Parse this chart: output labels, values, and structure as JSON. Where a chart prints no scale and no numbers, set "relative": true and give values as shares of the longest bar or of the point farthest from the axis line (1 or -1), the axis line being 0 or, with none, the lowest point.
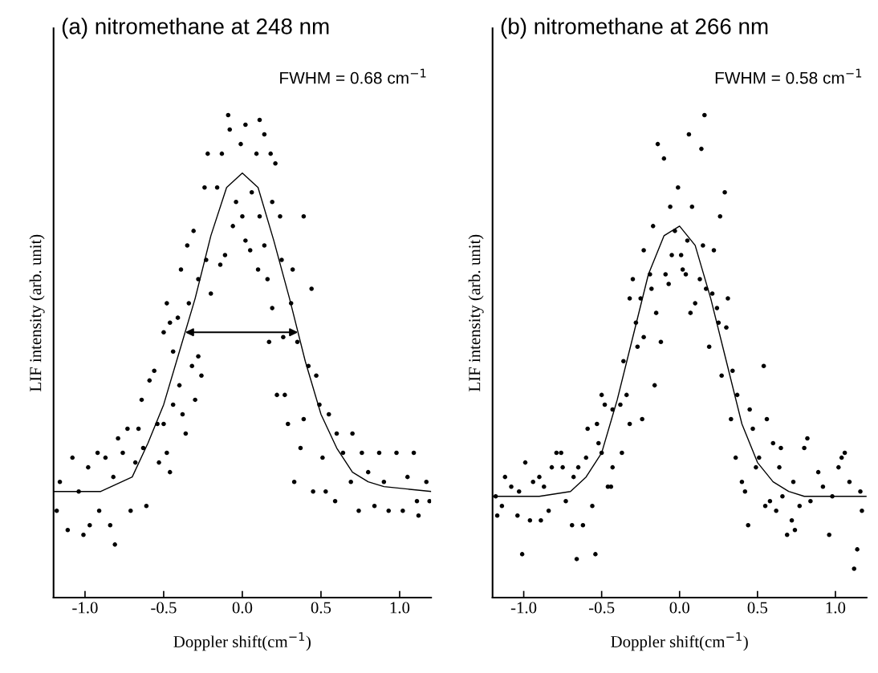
{
  "chart_data": [
    {
      "type": "scatter",
      "title": "(a) nitromethane at 248 nm",
      "xlabel": "Doppler shift(cm$^{−1}$)",
      "ylabel": "LIF intensity (arb. unit)",
      "relative": true,
      "xlim": [
        -1.2,
        1.2
      ],
      "xticks": [
        {
          "value": -1.0,
          "label": "-1.0"
        },
        {
          "value": -0.5,
          "label": "-0.5"
        },
        {
          "value": 0.0,
          "label": "0.0"
        },
        {
          "value": 0.5,
          "label": "0.5"
        },
        {
          "value": 1.0,
          "label": "1.0"
        }
      ],
      "tick_labels": "x",
      "grid": false,
      "annotations": [
        "FWHM = 0.68 cm$^{−1}$"
      ],
      "series": [
        {
          "marker": "circle",
          "color": "#000000",
          "x": [
            -1.16,
            -1.18,
            -1.11,
            -1.08,
            -1.01,
            -1.04,
            -0.97,
            -0.98,
            -0.92,
            -0.91,
            -0.87,
            -0.84,
            -0.81,
            -0.82,
            -0.79,
            -0.76,
            -0.73,
            -0.71,
            -0.68,
            -0.66,
            -0.64,
            -0.63,
            -0.61,
            -0.59,
            -0.56,
            -0.54,
            -0.53,
            -0.5,
            -0.48,
            -0.48,
            -0.46,
            -0.46,
            -0.5,
            -0.44,
            -0.44,
            -0.41,
            -0.4,
            -0.39,
            -0.38,
            -0.36,
            -0.35,
            -0.34,
            -0.32,
            -0.31,
            -0.3,
            -0.28,
            -0.28,
            -0.26,
            -0.24,
            -0.23,
            -0.22,
            -0.2,
            -0.16,
            -0.14,
            -0.13,
            -0.11,
            -0.09,
            -0.08,
            -0.06,
            -0.04,
            -0.01,
            0.0,
            0.02,
            0.02,
            0.05,
            0.06,
            0.09,
            0.11,
            0.1,
            0.11,
            0.14,
            0.14,
            0.16,
            0.17,
            0.18,
            0.19,
            0.19,
            0.21,
            0.22,
            0.24,
            0.25,
            0.26,
            0.27,
            0.29,
            0.31,
            0.32,
            0.33,
            0.35,
            0.37,
            0.39,
            0.39,
            0.42,
            0.44,
            0.45,
            0.47,
            0.49,
            0.51,
            0.53,
            0.55,
            0.59,
            0.6,
            0.64,
            0.69,
            0.7,
            0.74,
            0.76,
            0.8,
            0.84,
            0.87,
            0.9,
            0.93,
            0.98,
            1.02,
            1.05,
            1.09,
            1.11,
            1.12,
            1.17,
            1.19
          ],
          "values": [
            0.24,
            0.18,
            0.14,
            0.29,
            0.13,
            0.22,
            0.15,
            0.27,
            0.3,
            0.18,
            0.29,
            0.15,
            0.11,
            0.25,
            0.33,
            0.3,
            0.35,
            0.18,
            0.28,
            0.35,
            0.41,
            0.31,
            0.19,
            0.45,
            0.47,
            0.36,
            0.28,
            0.36,
            0.3,
            0.61,
            0.26,
            0.57,
            0.55,
            0.51,
            0.4,
            0.58,
            0.44,
            0.68,
            0.38,
            0.34,
            0.73,
            0.61,
            0.48,
            0.76,
            0.41,
            0.5,
            0.66,
            0.46,
            0.85,
            0.7,
            0.92,
            0.63,
            0.85,
            0.69,
            0.92,
            0.71,
            1.0,
            0.97,
            0.77,
            0.82,
            0.94,
            0.79,
            0.74,
            0.98,
            0.72,
            0.84,
            0.92,
            0.99,
            0.68,
            0.79,
            0.96,
            0.73,
            0.66,
            0.53,
            0.92,
            0.6,
            0.82,
            0.9,
            0.42,
            0.79,
            0.7,
            0.54,
            0.42,
            0.36,
            0.61,
            0.68,
            0.24,
            0.53,
            0.31,
            0.79,
            0.37,
            0.48,
            0.64,
            0.22,
            0.46,
            0.4,
            0.29,
            0.22,
            0.38,
            0.2,
            0.34,
            0.3,
            0.24,
            0.34,
            0.18,
            0.3,
            0.26,
            0.19,
            0.3,
            0.24,
            0.18,
            0.3,
            0.18,
            0.25,
            0.3,
            0.2,
            0.17,
            0.24,
            0.2
          ]
        },
        {
          "type": "line",
          "marker": "none",
          "line_style": "solid",
          "color": "#000000",
          "x": [
            -1.2,
            -0.9,
            -0.7,
            -0.6,
            -0.5,
            -0.4,
            -0.3,
            -0.2,
            -0.1,
            0.0,
            0.1,
            0.2,
            0.3,
            0.4,
            0.5,
            0.6,
            0.7,
            0.8,
            0.9,
            1.2
          ],
          "values": [
            0.22,
            0.22,
            0.25,
            0.32,
            0.4,
            0.51,
            0.62,
            0.75,
            0.85,
            0.88,
            0.85,
            0.74,
            0.62,
            0.49,
            0.38,
            0.31,
            0.26,
            0.24,
            0.23,
            0.22
          ]
        }
      ]
    },
    {
      "type": "scatter",
      "title": "(b) nitromethane at 266 nm",
      "xlabel": "Doppler shift(cm$^{−1}$)",
      "ylabel": "LIF intensity (arb. unit)",
      "relative": true,
      "xlim": [
        -1.2,
        1.2
      ],
      "xticks": [
        {
          "value": -1.0,
          "label": "-1.0"
        },
        {
          "value": -0.5,
          "label": "-0.5"
        },
        {
          "value": 0.0,
          "label": "0.0"
        },
        {
          "value": 0.5,
          "label": "0.5"
        },
        {
          "value": 1.0,
          "label": "1.0"
        }
      ],
      "tick_labels": "x",
      "grid": false,
      "annotations": [
        "FWHM = 0.58 cm$^{−1}$"
      ],
      "series": [
        {
          "marker": "circle",
          "color": "#000000",
          "x": [
            -1.18,
            -1.17,
            -1.14,
            -1.12,
            -1.08,
            -1.04,
            -1.03,
            -1.01,
            -0.99,
            -0.96,
            -0.94,
            -0.9,
            -0.89,
            -0.87,
            -0.84,
            -0.82,
            -0.79,
            -0.76,
            -0.75,
            -0.73,
            -0.69,
            -0.68,
            -0.66,
            -0.65,
            -0.62,
            -0.6,
            -0.56,
            -0.54,
            -0.59,
            -0.53,
            -0.52,
            -0.5,
            -0.5,
            -0.46,
            -0.44,
            -0.48,
            -0.43,
            -0.43,
            -0.38,
            -0.37,
            -0.36,
            -0.34,
            -0.32,
            -0.32,
            -0.3,
            -0.28,
            -0.27,
            -0.25,
            -0.24,
            -0.23,
            -0.23,
            -0.19,
            -0.18,
            -0.17,
            -0.16,
            -0.15,
            -0.14,
            -0.12,
            -0.1,
            -0.09,
            -0.07,
            -0.06,
            -0.05,
            -0.03,
            -0.01,
            0.01,
            0.02,
            0.04,
            0.05,
            0.06,
            0.07,
            0.08,
            0.1,
            0.13,
            0.14,
            0.15,
            0.16,
            0.17,
            0.19,
            0.21,
            0.22,
            0.24,
            0.25,
            0.26,
            0.27,
            0.29,
            0.3,
            0.31,
            0.33,
            0.34,
            0.36,
            0.37,
            0.4,
            0.42,
            0.44,
            0.45,
            0.47,
            0.49,
            0.51,
            0.54,
            0.55,
            0.56,
            0.58,
            0.6,
            0.62,
            0.64,
            0.65,
            0.66,
            0.69,
            0.72,
            0.73,
            0.74,
            0.77,
            0.8,
            0.82,
            0.84,
            0.89,
            0.92,
            0.96,
            0.98,
            1.02,
            1.04,
            1.06,
            1.09,
            1.12,
            1.14,
            1.16,
            1.17
          ],
          "values": [
            0.21,
            0.17,
            0.19,
            0.25,
            0.23,
            0.17,
            0.22,
            0.09,
            0.28,
            0.16,
            0.24,
            0.25,
            0.16,
            0.23,
            0.18,
            0.27,
            0.3,
            0.3,
            0.27,
            0.2,
            0.15,
            0.25,
            0.08,
            0.27,
            0.15,
            0.29,
            0.19,
            0.09,
            0.35,
            0.36,
            0.32,
            0.3,
            0.42,
            0.23,
            0.23,
            0.4,
            0.27,
            0.39,
            0.4,
            0.3,
            0.49,
            0.42,
            0.62,
            0.36,
            0.66,
            0.57,
            0.52,
            0.62,
            0.37,
            0.72,
            0.54,
            0.67,
            0.64,
            0.77,
            0.44,
            0.59,
            0.94,
            0.53,
            0.91,
            0.67,
            0.65,
            0.81,
            0.71,
            0.76,
            0.85,
            0.71,
            0.68,
            0.67,
            0.74,
            0.96,
            0.59,
            0.81,
            0.61,
            0.66,
            0.93,
            0.73,
            1.0,
            0.64,
            0.52,
            0.63,
            0.72,
            0.6,
            0.57,
            0.79,
            0.46,
            0.84,
            0.56,
            0.62,
            0.37,
            0.47,
            0.29,
            0.42,
            0.24,
            0.22,
            0.15,
            0.39,
            0.35,
            0.27,
            0.29,
            0.48,
            0.19,
            0.37,
            0.2,
            0.32,
            0.18,
            0.27,
            0.31,
            0.21,
            0.13,
            0.16,
            0.24,
            0.14,
            0.19,
            0.31,
            0.33,
            0.2,
            0.26,
            0.23,
            0.13,
            0.21,
            0.27,
            0.29,
            0.3,
            0.24,
            0.06,
            0.1,
            0.22,
            0.18
          ]
        },
        {
          "type": "line",
          "marker": "none",
          "line_style": "solid",
          "color": "#000000",
          "x": [
            -1.2,
            -0.9,
            -0.7,
            -0.6,
            -0.5,
            -0.4,
            -0.3,
            -0.2,
            -0.1,
            0.0,
            0.1,
            0.2,
            0.3,
            0.4,
            0.5,
            0.6,
            0.7,
            0.8,
            1.2
          ],
          "values": [
            0.21,
            0.21,
            0.22,
            0.25,
            0.3,
            0.41,
            0.54,
            0.67,
            0.75,
            0.77,
            0.73,
            0.62,
            0.49,
            0.36,
            0.28,
            0.24,
            0.22,
            0.21,
            0.21
          ]
        }
      ]
    }
  ]
}
